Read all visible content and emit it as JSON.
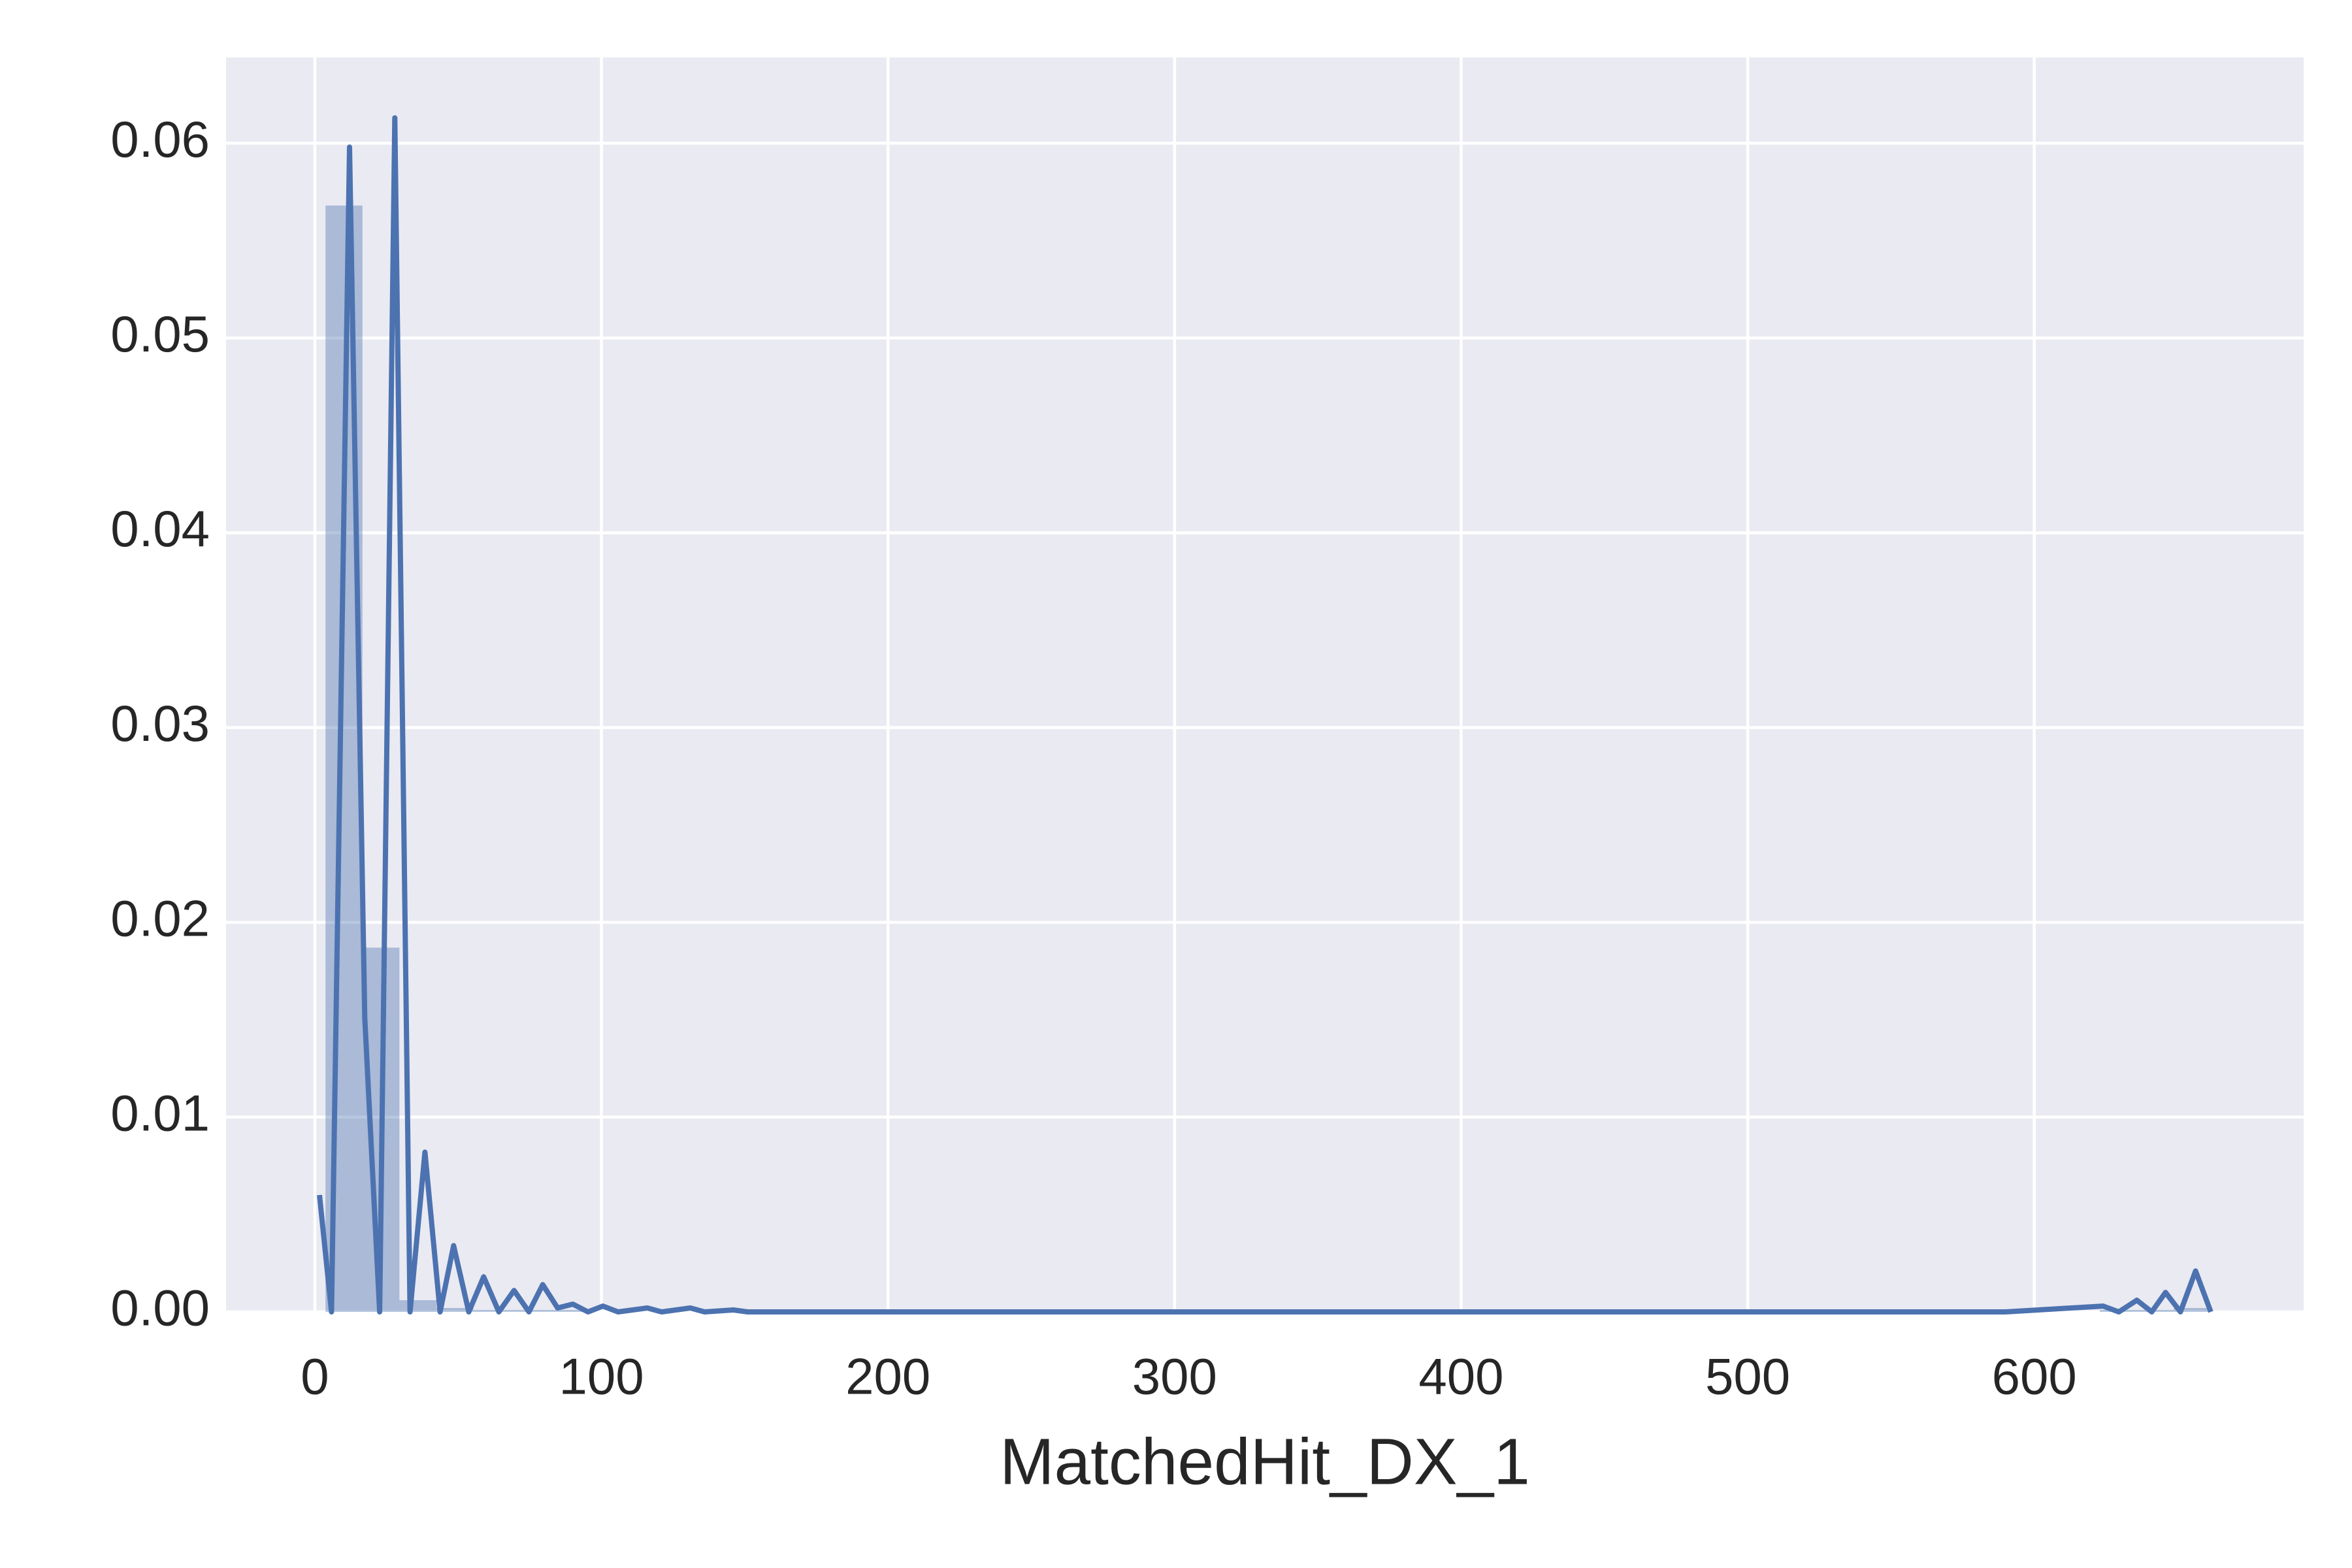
{
  "chart_data": {
    "type": "histogram",
    "x_label": "MatchedHit_DX_1",
    "color": "#4c72b0",
    "bins": [
      3.7,
      16.6,
      29.5,
      42.4,
      55.3,
      68.2,
      81.1,
      94.0,
      106.9,
      119.8,
      132.7,
      145.6,
      158.5,
      171.4,
      184.3,
      197.2,
      210.1,
      223.0,
      235.9,
      248.8,
      261.7,
      274.6,
      287.5,
      300.4,
      313.3,
      326.2,
      339.1,
      352.0,
      364.9,
      377.8,
      390.7,
      403.6,
      416.5,
      429.4,
      442.3,
      455.2,
      468.1,
      481.0,
      493.9,
      506.8,
      519.7,
      532.6,
      545.5,
      558.4,
      571.3,
      584.2,
      597.1,
      610.0,
      622.9,
      635.8,
      648.7,
      661.6
    ],
    "values": [
      0.0568,
      0.0187,
      0.0006,
      0.0002,
      0.0001,
      0.0001,
      0.0001,
      0,
      0,
      0,
      0,
      0,
      0,
      0,
      0,
      0,
      0,
      0,
      0,
      0,
      0,
      0,
      0,
      0,
      0,
      0,
      0,
      0,
      0,
      0,
      0,
      0,
      0,
      0,
      0,
      0,
      0,
      0,
      0,
      0,
      0,
      0,
      0,
      0,
      0,
      0,
      0,
      0,
      0.0001,
      0.0001,
      0.0002
    ],
    "line": {
      "x": [
        1.6,
        5.8,
        12.1,
        17.4,
        22.6,
        27.9,
        33.2,
        38.4,
        43.7,
        48.4,
        53.7,
        58.9,
        64.2,
        69.5,
        74.7,
        79.5,
        84.7,
        90,
        95.3,
        100.5,
        105.8,
        116,
        121,
        131,
        136,
        146,
        151,
        590,
        624,
        629.5,
        635.8,
        641,
        645.8,
        651,
        656.3,
        661.6
      ],
      "values": [
        0.006,
        0,
        0.0598,
        0.0151,
        0,
        0.0613,
        0,
        0.0082,
        0,
        0.0034,
        0,
        0.0018,
        0,
        0.0011,
        0,
        0.0014,
        0.0002,
        0.0004,
        0,
        0.0003,
        0,
        0.0002,
        0,
        0.0002,
        0,
        0.0001,
        0,
        0,
        0.0003,
        0,
        0.0006,
        0,
        0.001,
        0,
        0.0021,
        0
      ]
    },
    "xlim": [
      -31,
      694
    ],
    "ylim": [
      0,
      0.0644
    ],
    "xticks": [
      0,
      100,
      200,
      300,
      400,
      500,
      600
    ],
    "yticks": [
      {
        "value": 0,
        "label": "0.00"
      },
      {
        "value": 0.01,
        "label": "0.01"
      },
      {
        "value": 0.02,
        "label": "0.02"
      },
      {
        "value": 0.03,
        "label": "0.03"
      },
      {
        "value": 0.04,
        "label": "0.04"
      },
      {
        "value": 0.05,
        "label": "0.05"
      },
      {
        "value": 0.06,
        "label": "0.06"
      }
    ],
    "grid": true
  }
}
